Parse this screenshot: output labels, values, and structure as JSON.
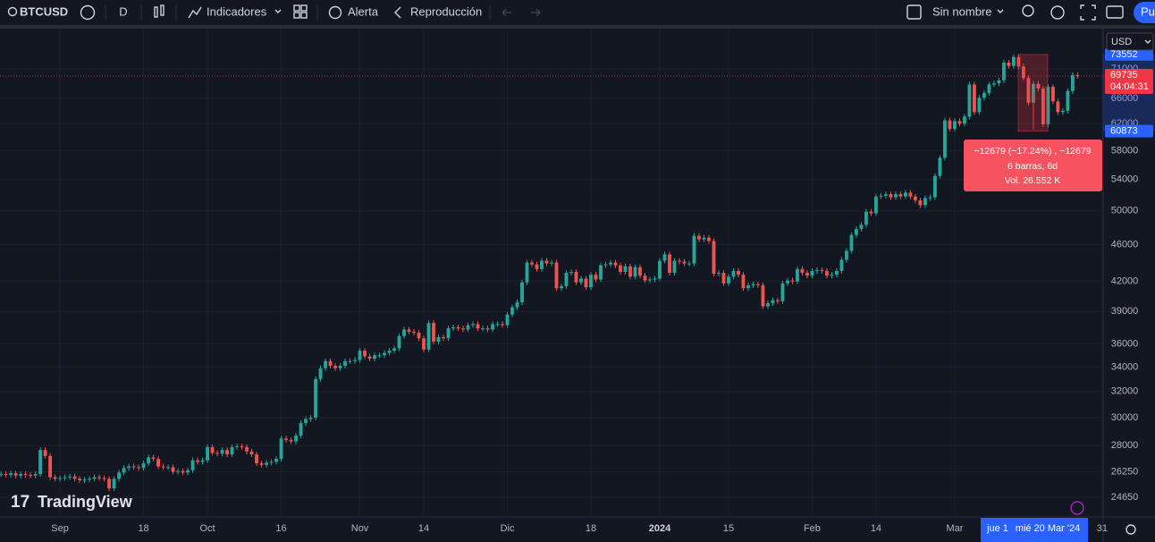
{
  "toolbar": {
    "symbol": "BTCUSD",
    "interval": "D",
    "indicators": "Indicadores",
    "alert": "Alerta",
    "replay": "Reproducción",
    "layout": "Sin nombre",
    "publish": "Pu"
  },
  "chart_data": {
    "type": "candlestick",
    "series": [
      {
        "name": "BTCUSD",
        "up_color": "#26a69a",
        "down_color": "#ef5350",
        "values": [
          26100,
          26050,
          26150,
          26000,
          26100,
          26050,
          26000,
          26100,
          27700,
          27300,
          25900,
          25800,
          25850,
          25900,
          25950,
          25800,
          25700,
          25750,
          25800,
          25900,
          25850,
          25800,
          25200,
          25800,
          26200,
          26500,
          26600,
          26550,
          26500,
          26800,
          27200,
          27100,
          26600,
          26550,
          26550,
          26250,
          26300,
          26200,
          26350,
          27000,
          26900,
          27000,
          27900,
          27500,
          27450,
          27700,
          27400,
          27900,
          27950,
          27900,
          27600,
          27400,
          26800,
          26700,
          26850,
          26900,
          27100,
          28500,
          28400,
          28300,
          28700,
          29600,
          29900,
          30000,
          33000,
          33900,
          34500,
          34100,
          33900,
          34100,
          34500,
          34500,
          34600,
          35400,
          34900,
          34700,
          35000,
          35000,
          35200,
          35400,
          35600,
          36700,
          37300,
          37100,
          37000,
          36500,
          35500,
          37900,
          36200,
          36600,
          36500,
          37400,
          37500,
          37400,
          37300,
          37700,
          37800,
          37400,
          37400,
          37300,
          37800,
          37800,
          37700,
          38700,
          39400,
          39900,
          41900,
          44000,
          43800,
          43300,
          44200,
          43900,
          44000,
          41300,
          41500,
          42900,
          43000,
          41900,
          42300,
          41400,
          42700,
          42200,
          43700,
          43800,
          44000,
          43700,
          43000,
          43600,
          42500,
          43500,
          42600,
          42100,
          42200,
          42300,
          44200,
          44900,
          42900,
          44200,
          44100,
          43900,
          43900,
          47000,
          46600,
          46800,
          46400,
          42800,
          42900,
          41800,
          42500,
          43100,
          42700,
          41300,
          41600,
          41700,
          41600,
          39500,
          39800,
          40100,
          40000,
          41800,
          42100,
          42000,
          43300,
          42900,
          42600,
          43100,
          43200,
          43100,
          42600,
          42700,
          43100,
          44300,
          45300,
          47100,
          47800,
          48300,
          49900,
          49700,
          51800,
          51900,
          52100,
          51700,
          52100,
          51800,
          52300,
          51800,
          51300,
          50700,
          51600,
          51700,
          54500,
          57000,
          62500,
          61200,
          62400,
          62000,
          63100,
          68300,
          63800,
          66100,
          66900,
          68300,
          68500,
          69000,
          72100,
          71500,
          73100,
          71400,
          69400,
          65300,
          68400,
          67600,
          61900,
          67900,
          65500,
          63800,
          64000,
          67200,
          69900,
          69735
        ]
      }
    ],
    "log_scale": true,
    "ylim": [
      23480,
      78400
    ],
    "yticks": [
      24650,
      26250,
      28000,
      30000,
      32000,
      34000,
      36000,
      39000,
      42000,
      46000,
      50000,
      54000,
      58000,
      62000,
      66000,
      71000
    ],
    "xlim": [
      -0.2,
      224.2
    ],
    "xticks": [
      {
        "value": 12,
        "label": "Sep"
      },
      {
        "value": 29,
        "label": "18"
      },
      {
        "value": 42,
        "label": "Oct"
      },
      {
        "value": 57,
        "label": "16"
      },
      {
        "value": 73,
        "label": "Nov"
      },
      {
        "value": 86,
        "label": "14"
      },
      {
        "value": 103,
        "label": "Dic"
      },
      {
        "value": 120,
        "label": "18"
      },
      {
        "value": 134,
        "label": "2024"
      },
      {
        "value": 148,
        "label": "15"
      },
      {
        "value": 165,
        "label": "Feb"
      },
      {
        "value": 178,
        "label": "14"
      },
      {
        "value": 194,
        "label": "Mar"
      },
      {
        "value": 224,
        "label": "31"
      }
    ],
    "currency": "USD",
    "countdown": "04:04:31",
    "measure": {
      "high": 73552,
      "low": 60873,
      "change": "−12679 (−17.24%) , −12679",
      "bars": "6 barras, 6d",
      "volume": "Vol. 26.552 K"
    },
    "date_labels": [
      "jue 1",
      "mié 20 Mar '24"
    ],
    "watermark": "TradingView"
  }
}
